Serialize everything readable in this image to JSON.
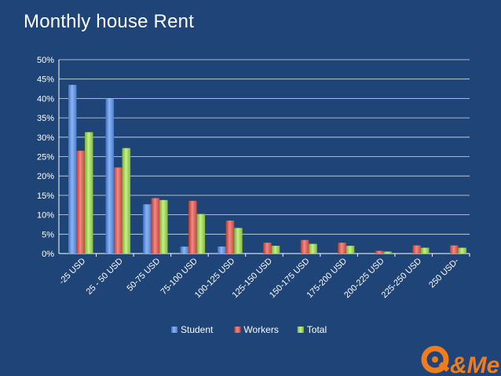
{
  "title": "Monthly house Rent",
  "colors": {
    "background": "#1f4478",
    "student": "#5b8fe0",
    "workers": "#d9534f",
    "total": "#9bd24a",
    "logo_orange": "#f07c1e"
  },
  "logo": {
    "text": "Q&Me"
  },
  "chart_data": {
    "type": "bar",
    "title": "Monthly house Rent",
    "xlabel": "",
    "ylabel": "",
    "ylim": [
      0,
      0.5
    ],
    "ytick_step": 0.05,
    "yticks": [
      "0%",
      "5%",
      "10%",
      "15%",
      "20%",
      "25%",
      "30%",
      "35%",
      "40%",
      "45%",
      "50%"
    ],
    "grid": true,
    "legend_position": "bottom",
    "categories": [
      "-25 USD",
      "25 - 50 USD",
      "50-75 USD",
      "75-100 USD",
      "100-125 USD",
      "125-150 USD",
      "150-175 USD",
      "175-200 USD",
      "200-225 USD",
      "225-250 USD",
      "250 USD-"
    ],
    "series": [
      {
        "name": "Student",
        "values": [
          0.435,
          0.4,
          0.127,
          0.018,
          0.018,
          0.0,
          0.0,
          0.0,
          0.0,
          0.0,
          0.0
        ]
      },
      {
        "name": "Workers",
        "values": [
          0.265,
          0.222,
          0.143,
          0.136,
          0.085,
          0.028,
          0.035,
          0.028,
          0.007,
          0.021,
          0.021
        ]
      },
      {
        "name": "Total",
        "values": [
          0.313,
          0.272,
          0.138,
          0.102,
          0.066,
          0.02,
          0.025,
          0.02,
          0.005,
          0.015,
          0.015
        ]
      }
    ]
  }
}
